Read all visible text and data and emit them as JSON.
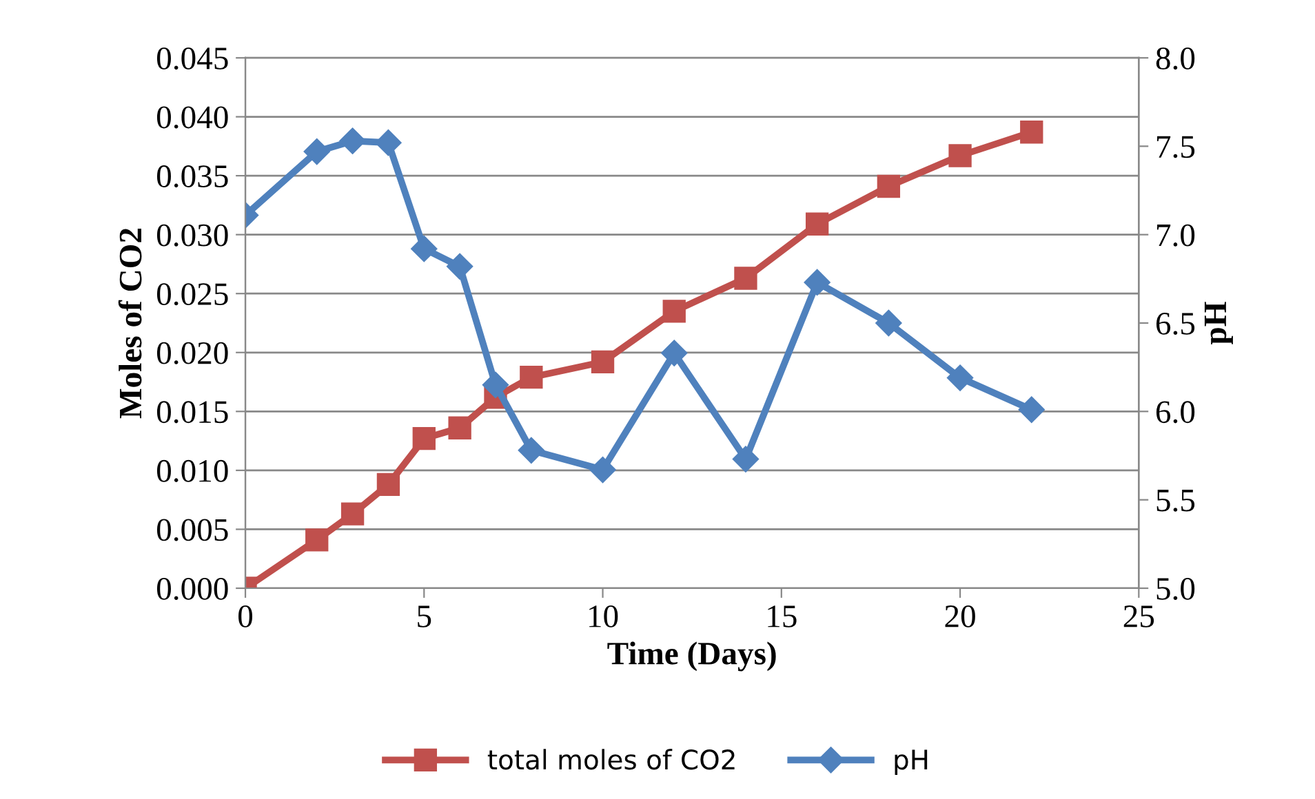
{
  "chart_data": {
    "type": "line",
    "xlabel": "Time (Days)",
    "ylabel": "Moles of CO2",
    "y2label": "pH",
    "xlim": [
      0,
      25
    ],
    "xticks": [
      0,
      5,
      10,
      15,
      20,
      25
    ],
    "ylim": [
      0,
      0.045
    ],
    "yticks": [
      {
        "value": 0,
        "label": "0.000"
      },
      {
        "value": 0.005,
        "label": "0.005"
      },
      {
        "value": 0.01,
        "label": "0.010"
      },
      {
        "value": 0.015,
        "label": "0.015"
      },
      {
        "value": 0.02,
        "label": "0.020"
      },
      {
        "value": 0.025,
        "label": "0.025"
      },
      {
        "value": 0.03,
        "label": "0.030"
      },
      {
        "value": 0.035,
        "label": "0.035"
      },
      {
        "value": 0.04,
        "label": "0.040"
      },
      {
        "value": 0.045,
        "label": "0.045"
      }
    ],
    "y2lim": [
      5,
      8
    ],
    "y2ticks": [
      {
        "value": 5,
        "label": "5.0"
      },
      {
        "value": 5.5,
        "label": "5.5"
      },
      {
        "value": 6,
        "label": "6.0"
      },
      {
        "value": 6.5,
        "label": "6.5"
      },
      {
        "value": 7,
        "label": "7.0"
      },
      {
        "value": 7.5,
        "label": "7.5"
      },
      {
        "value": 8,
        "label": "8.0"
      }
    ],
    "grid": "y",
    "legend": "bottom",
    "series": [
      {
        "name": "total moles of CO2",
        "color": "#c0504d",
        "marker": "square",
        "x": [
          0,
          2,
          3,
          4,
          5,
          6,
          7,
          8,
          10,
          12,
          14,
          16,
          18,
          20,
          22
        ],
        "values": [
          0.0,
          0.0041,
          0.0063,
          0.0088,
          0.0127,
          0.0136,
          0.0162,
          0.0179,
          0.0192,
          0.0235,
          0.0263,
          0.0309,
          0.0341,
          0.0367,
          0.0387
        ]
      },
      {
        "name": "pH",
        "color": "#4f81bd",
        "marker": "diamond",
        "axis": "y2",
        "x": [
          0,
          2,
          3,
          4,
          5,
          6,
          7,
          8,
          10,
          12,
          14,
          16,
          18,
          20,
          22
        ],
        "values": [
          7.11,
          7.47,
          7.53,
          7.52,
          6.92,
          6.82,
          6.15,
          5.78,
          5.67,
          6.33,
          5.73,
          6.73,
          6.5,
          6.19,
          6.01
        ]
      }
    ]
  }
}
